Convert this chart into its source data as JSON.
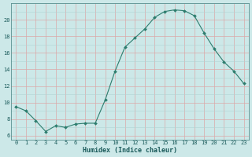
{
  "x": [
    0,
    1,
    2,
    3,
    4,
    5,
    6,
    7,
    8,
    9,
    10,
    11,
    12,
    13,
    14,
    15,
    16,
    17,
    18,
    19,
    20,
    21,
    22,
    23
  ],
  "y": [
    9.5,
    9.0,
    7.8,
    6.5,
    7.2,
    7.0,
    7.4,
    7.5,
    7.5,
    10.3,
    13.8,
    16.7,
    17.8,
    18.9,
    20.3,
    21.0,
    21.2,
    21.1,
    20.5,
    18.4,
    16.5,
    14.9,
    13.8,
    12.3
  ],
  "line_color": "#2d7d6e",
  "marker": "D",
  "marker_size": 2.0,
  "bg_color": "#cce8e8",
  "grid_color_teal": "#b0d4d4",
  "grid_color_pink": "#dba8a8",
  "xlabel": "Humidex (Indice chaleur)",
  "yticks": [
    6,
    8,
    10,
    12,
    14,
    16,
    18,
    20
  ],
  "ylim": [
    5.5,
    22.0
  ],
  "xlim": [
    -0.5,
    23.5
  ],
  "tick_fontsize": 5.0,
  "xlabel_fontsize": 6.0
}
